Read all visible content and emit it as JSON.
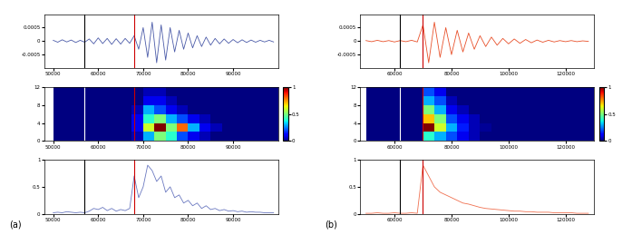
{
  "chart_data": [
    {
      "type": "line",
      "color": "#4a5aa8",
      "x": [
        50000,
        51000,
        52000,
        53000,
        54000,
        55000,
        56000,
        57000,
        58000,
        59000,
        60000,
        61000,
        62000,
        63000,
        64000,
        65000,
        66000,
        67000,
        68000,
        69000,
        70000,
        71000,
        72000,
        73000,
        74000,
        75000,
        76000,
        77000,
        78000,
        79000,
        80000,
        81000,
        82000,
        83000,
        84000,
        85000,
        86000,
        87000,
        88000,
        89000,
        90000,
        91000,
        92000,
        93000,
        94000,
        95000,
        96000,
        97000,
        98000,
        99000
      ],
      "values": [
        3e-05,
        -4e-05,
        5e-05,
        -3e-05,
        4e-05,
        -5e-05,
        3e-05,
        -4e-05,
        8e-05,
        -0.0001,
        0.00012,
        -9e-05,
        0.0001,
        -0.00012,
        9e-05,
        -0.00011,
        0.0001,
        -8e-05,
        0.0002,
        -0.0003,
        0.0005,
        -0.0006,
        0.0007,
        -0.0008,
        0.0006,
        -0.0007,
        0.0005,
        -0.0004,
        0.0004,
        -0.0003,
        0.0003,
        -0.00025,
        0.0002,
        -0.0002,
        0.00015,
        -0.00015,
        0.0001,
        -0.0001,
        8e-05,
        -8e-05,
        6e-05,
        -6e-05,
        5e-05,
        -5e-05,
        4e-05,
        -4e-05,
        3e-05,
        -3e-05,
        3e-05,
        -3e-05
      ],
      "xlim": [
        48000,
        100000
      ],
      "xticks": [
        50000,
        60000,
        70000,
        80000,
        90000
      ],
      "ylim": [
        -0.001,
        0.001
      ],
      "yticks": [
        -0.0005,
        0,
        0.0005
      ],
      "vlines": [
        {
          "x": 57000,
          "color": "#000000"
        },
        {
          "x": 68000,
          "color": "#cc0000"
        }
      ]
    },
    {
      "type": "heatmap",
      "x_edges": [
        50000,
        52500,
        55000,
        57500,
        60000,
        62500,
        65000,
        67500,
        70000,
        72500,
        75000,
        77500,
        80000,
        82500,
        85000,
        87500,
        90000,
        92500,
        95000,
        97500,
        100000
      ],
      "y_edges": [
        0,
        2,
        4,
        6,
        8,
        10,
        12
      ],
      "cells": [
        [
          0,
          0,
          0,
          0,
          0,
          0,
          0,
          0.05,
          0.3,
          0.5,
          0.4,
          0.2,
          0.1,
          0.05,
          0,
          0,
          0,
          0,
          0,
          0
        ],
        [
          0,
          0,
          0,
          0,
          0,
          0,
          0,
          0.1,
          0.6,
          1.0,
          0.5,
          0.8,
          0.3,
          0.1,
          0.05,
          0,
          0,
          0,
          0,
          0
        ],
        [
          0,
          0,
          0,
          0,
          0,
          0,
          0,
          0.1,
          0.4,
          0.5,
          0.3,
          0.2,
          0.1,
          0.05,
          0,
          0,
          0,
          0,
          0,
          0
        ],
        [
          0,
          0,
          0,
          0,
          0,
          0,
          0,
          0.05,
          0.3,
          0.2,
          0.1,
          0.05,
          0,
          0,
          0,
          0,
          0,
          0,
          0,
          0
        ],
        [
          0,
          0,
          0,
          0,
          0,
          0,
          0,
          0,
          0.1,
          0.1,
          0.05,
          0,
          0,
          0,
          0,
          0,
          0,
          0,
          0,
          0
        ],
        [
          0,
          0,
          0,
          0,
          0,
          0,
          0,
          0,
          0.05,
          0.05,
          0,
          0,
          0,
          0,
          0,
          0,
          0,
          0,
          0,
          0
        ]
      ],
      "clim": [
        0,
        1
      ],
      "cticks": [
        0,
        0.5,
        1
      ],
      "xlim": [
        48000,
        100000
      ],
      "xticks": [
        50000,
        60000,
        70000,
        80000,
        90000
      ],
      "ylim": [
        0,
        12
      ],
      "yticks": [
        0,
        4,
        8,
        12
      ],
      "vlines": [
        {
          "x": 57000,
          "color": "#ffffff"
        },
        {
          "x": 68000,
          "color": "#cc0000"
        }
      ]
    },
    {
      "type": "line",
      "color": "#6a78c0",
      "annotation": "(a)",
      "x": [
        50000,
        51000,
        52000,
        53000,
        54000,
        55000,
        56000,
        57000,
        58000,
        59000,
        60000,
        61000,
        62000,
        63000,
        64000,
        65000,
        66000,
        67000,
        68000,
        69000,
        70000,
        71000,
        72000,
        73000,
        74000,
        75000,
        76000,
        77000,
        78000,
        79000,
        80000,
        81000,
        82000,
        83000,
        84000,
        85000,
        86000,
        87000,
        88000,
        89000,
        90000,
        91000,
        92000,
        93000,
        94000,
        95000,
        96000,
        97000,
        98000,
        99000
      ],
      "values": [
        0.02,
        0.03,
        0.02,
        0.04,
        0.03,
        0.02,
        0.03,
        0.02,
        0.05,
        0.1,
        0.08,
        0.12,
        0.06,
        0.1,
        0.05,
        0.08,
        0.06,
        0.1,
        0.7,
        0.3,
        0.5,
        0.9,
        0.8,
        0.6,
        0.7,
        0.4,
        0.5,
        0.3,
        0.35,
        0.2,
        0.25,
        0.15,
        0.2,
        0.1,
        0.15,
        0.08,
        0.1,
        0.06,
        0.08,
        0.05,
        0.06,
        0.04,
        0.05,
        0.03,
        0.04,
        0.03,
        0.03,
        0.02,
        0.02,
        0.02
      ],
      "xlim": [
        48000,
        100000
      ],
      "xticks": [
        50000,
        60000,
        70000,
        80000,
        90000
      ],
      "ylim": [
        0,
        1
      ],
      "yticks": [
        0,
        0.5,
        1
      ],
      "vlines": [
        {
          "x": 57000,
          "color": "#000000"
        },
        {
          "x": 68000,
          "color": "#cc0000"
        }
      ]
    },
    {
      "type": "line",
      "color": "#e8502a",
      "x": [
        50000,
        52000,
        54000,
        56000,
        58000,
        60000,
        62000,
        64000,
        66000,
        68000,
        70000,
        72000,
        74000,
        76000,
        78000,
        80000,
        82000,
        84000,
        86000,
        88000,
        90000,
        92000,
        94000,
        96000,
        98000,
        100000,
        102000,
        104000,
        106000,
        108000,
        110000,
        112000,
        114000,
        116000,
        118000,
        120000,
        122000,
        124000,
        126000,
        128000
      ],
      "values": [
        2e-05,
        -2e-05,
        3e-05,
        -2e-05,
        2e-05,
        -3e-05,
        2e-05,
        -2e-05,
        3e-05,
        -3e-05,
        0.0006,
        -0.0008,
        0.0007,
        -0.0006,
        0.0005,
        -0.0005,
        0.0004,
        -0.0004,
        0.0003,
        -0.0003,
        0.0002,
        -0.0002,
        0.00015,
        -0.00015,
        0.0001,
        -0.0001,
        8e-05,
        -8e-05,
        6e-05,
        -6e-05,
        4e-05,
        -4e-05,
        3e-05,
        -3e-05,
        2e-05,
        -2e-05,
        2e-05,
        -2e-05,
        1e-05,
        -1e-05
      ],
      "xlim": [
        48000,
        130000
      ],
      "xticks": [
        60000,
        80000,
        100000,
        120000
      ],
      "ylim": [
        -0.001,
        0.001
      ],
      "yticks": [
        -0.0005,
        0,
        0.0005
      ],
      "vlines": [
        {
          "x": 62000,
          "color": "#000000"
        },
        {
          "x": 70000,
          "color": "#cc0000"
        }
      ]
    },
    {
      "type": "heatmap",
      "x_edges": [
        50000,
        54000,
        58000,
        62000,
        66000,
        70000,
        74000,
        78000,
        82000,
        86000,
        90000,
        94000,
        98000,
        102000,
        106000,
        110000,
        114000,
        118000,
        122000,
        126000,
        130000
      ],
      "y_edges": [
        0,
        2,
        4,
        6,
        8,
        10,
        12
      ],
      "cells": [
        [
          0,
          0,
          0,
          0,
          0,
          0.4,
          0.3,
          0.2,
          0.1,
          0.05,
          0,
          0,
          0,
          0,
          0,
          0,
          0,
          0,
          0,
          0
        ],
        [
          0,
          0,
          0,
          0,
          0,
          1.0,
          0.6,
          0.3,
          0.15,
          0.05,
          0.02,
          0,
          0,
          0,
          0,
          0,
          0,
          0,
          0,
          0
        ],
        [
          0,
          0,
          0,
          0,
          0,
          0.7,
          0.5,
          0.2,
          0.1,
          0.05,
          0,
          0,
          0,
          0,
          0,
          0,
          0,
          0,
          0,
          0
        ],
        [
          0,
          0,
          0,
          0,
          0,
          0.5,
          0.3,
          0.1,
          0.05,
          0,
          0,
          0,
          0,
          0,
          0,
          0,
          0,
          0,
          0,
          0
        ],
        [
          0,
          0,
          0,
          0,
          0,
          0.3,
          0.2,
          0.05,
          0,
          0,
          0,
          0,
          0,
          0,
          0,
          0,
          0,
          0,
          0,
          0
        ],
        [
          0,
          0,
          0,
          0,
          0,
          0.2,
          0.1,
          0,
          0,
          0,
          0,
          0,
          0,
          0,
          0,
          0,
          0,
          0,
          0,
          0
        ]
      ],
      "clim": [
        0,
        1
      ],
      "cticks": [
        0,
        0.5,
        1
      ],
      "xlim": [
        48000,
        130000
      ],
      "xticks": [
        60000,
        80000,
        100000,
        120000
      ],
      "ylim": [
        0,
        12
      ],
      "yticks": [
        0,
        4,
        8,
        12
      ],
      "vlines": [
        {
          "x": 62000,
          "color": "#ffffff"
        },
        {
          "x": 70000,
          "color": "#cc0000"
        }
      ]
    },
    {
      "type": "line",
      "color": "#f07050",
      "annotation": "(b)",
      "x": [
        50000,
        52000,
        54000,
        56000,
        58000,
        60000,
        62000,
        64000,
        66000,
        68000,
        70000,
        72000,
        74000,
        76000,
        78000,
        80000,
        82000,
        84000,
        86000,
        88000,
        90000,
        92000,
        94000,
        96000,
        98000,
        100000,
        102000,
        104000,
        106000,
        108000,
        110000,
        112000,
        114000,
        116000,
        118000,
        120000,
        122000,
        124000,
        126000,
        128000
      ],
      "values": [
        0.01,
        0.01,
        0.02,
        0.01,
        0.01,
        0.02,
        0.01,
        0.01,
        0.02,
        0.01,
        0.9,
        0.7,
        0.5,
        0.4,
        0.35,
        0.3,
        0.25,
        0.2,
        0.18,
        0.15,
        0.12,
        0.1,
        0.09,
        0.08,
        0.07,
        0.06,
        0.05,
        0.05,
        0.04,
        0.04,
        0.03,
        0.03,
        0.03,
        0.02,
        0.02,
        0.02,
        0.02,
        0.01,
        0.01,
        0.01
      ],
      "xlim": [
        48000,
        130000
      ],
      "xticks": [
        60000,
        80000,
        100000,
        120000
      ],
      "ylim": [
        0,
        1
      ],
      "yticks": [
        0,
        0.5,
        1
      ],
      "vlines": [
        {
          "x": 62000,
          "color": "#000000"
        },
        {
          "x": 70000,
          "color": "#cc0000"
        }
      ]
    }
  ]
}
